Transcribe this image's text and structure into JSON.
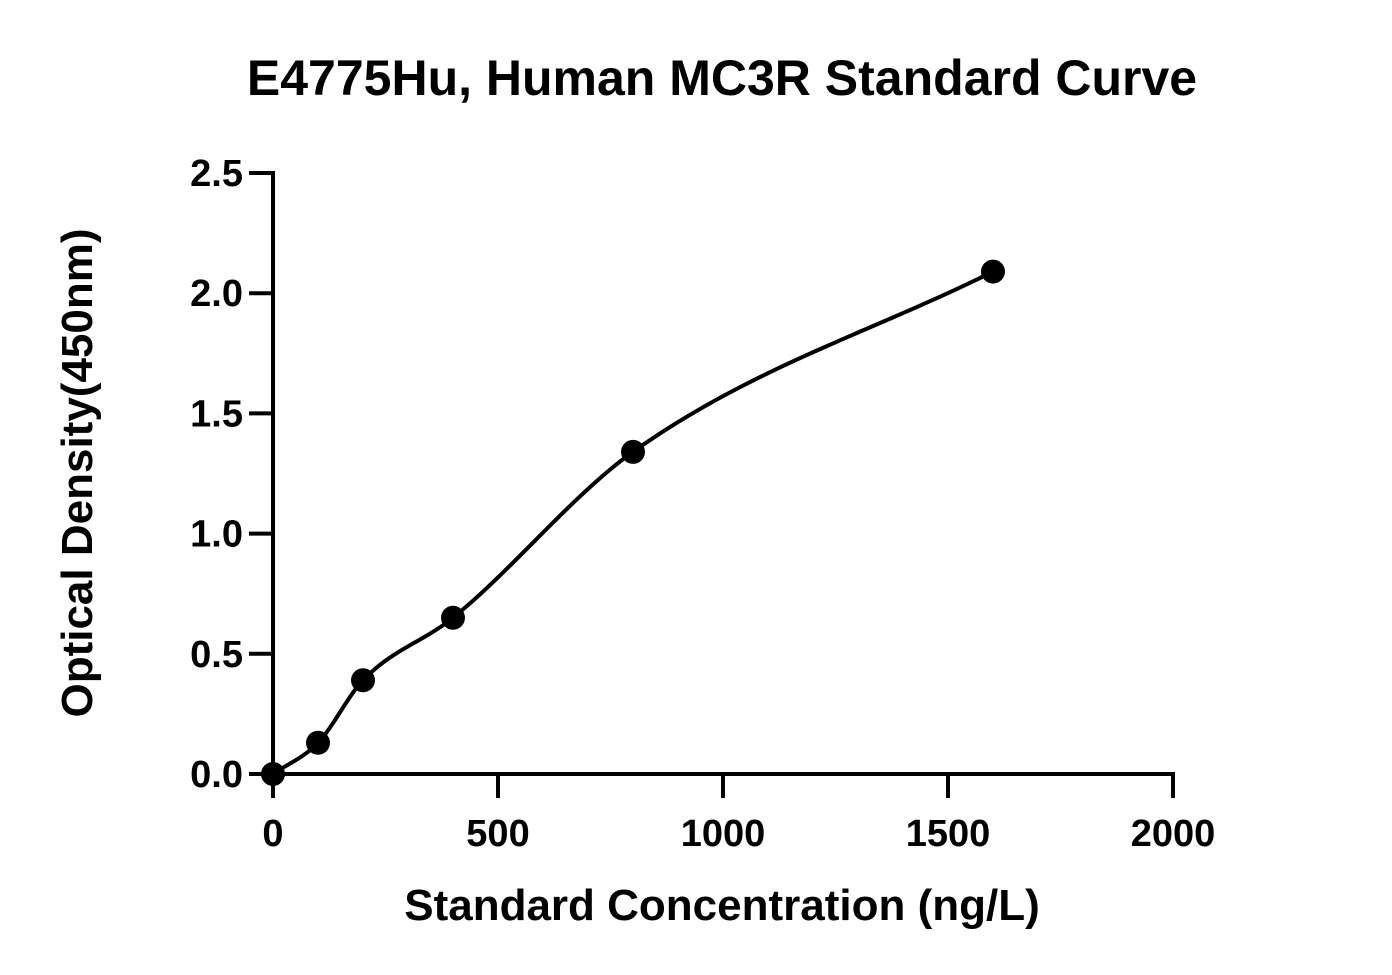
{
  "chart_data": {
    "type": "scatter",
    "title": "E4775Hu, Human MC3R Standard Curve",
    "xlabel": "Standard Concentration (ng/L)",
    "ylabel": "Optical Density(450nm)",
    "xlim": [
      0,
      2000
    ],
    "ylim": [
      0,
      2.5
    ],
    "x_ticks": [
      "0",
      "500",
      "1000",
      "1500",
      "2000"
    ],
    "y_ticks": [
      "0.0",
      "0.5",
      "1.0",
      "1.5",
      "2.0",
      "2.5"
    ],
    "grid": false,
    "legend": "none",
    "fit": "four-parameter logistic curve",
    "colors": {
      "points": "#000000",
      "curve": "#000000"
    },
    "series": [
      {
        "x": [
          0,
          100,
          200,
          400,
          800,
          1600
        ],
        "y": [
          0.0,
          0.13,
          0.39,
          0.65,
          1.34,
          2.09
        ]
      }
    ]
  }
}
